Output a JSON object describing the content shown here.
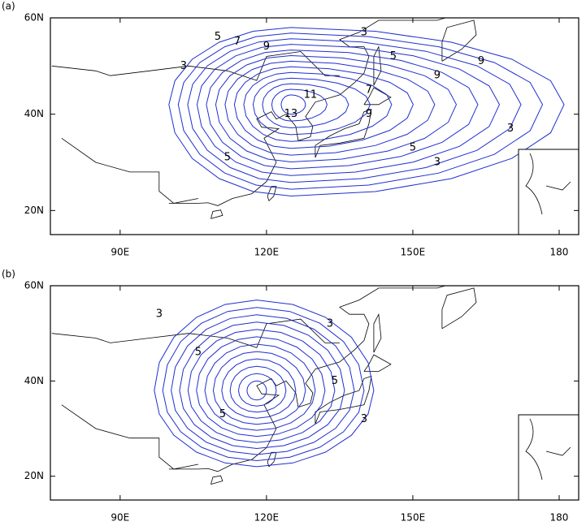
{
  "panels": [
    {
      "label": "(a)",
      "xlim": [
        75.7,
        184
      ],
      "ylim": [
        15,
        60
      ],
      "xticks": [
        {
          "value": 90,
          "label": "90E"
        },
        {
          "value": 120,
          "label": "120E"
        },
        {
          "value": 150,
          "label": "150E"
        },
        {
          "value": 180,
          "label": "180"
        }
      ],
      "yticks": [
        {
          "value": 20,
          "label": "20N"
        },
        {
          "value": 40,
          "label": "40N"
        },
        {
          "value": 60,
          "label": "60N"
        }
      ],
      "contour_labels": [
        3,
        5,
        7,
        9,
        3,
        5,
        9,
        9,
        7,
        5,
        3,
        5,
        3,
        11,
        13,
        9
      ]
    },
    {
      "label": "(b)",
      "xlim": [
        75.7,
        184
      ],
      "ylim": [
        15,
        60
      ],
      "xticks": [
        {
          "value": 90,
          "label": "90E"
        },
        {
          "value": 120,
          "label": "120E"
        },
        {
          "value": 150,
          "label": "150E"
        },
        {
          "value": 180,
          "label": "180"
        }
      ],
      "yticks": [
        {
          "value": 20,
          "label": "20N"
        },
        {
          "value": 40,
          "label": "40N"
        },
        {
          "value": 60,
          "label": "60N"
        }
      ],
      "contour_labels": [
        3,
        5,
        3,
        5,
        3,
        5
      ]
    }
  ]
}
